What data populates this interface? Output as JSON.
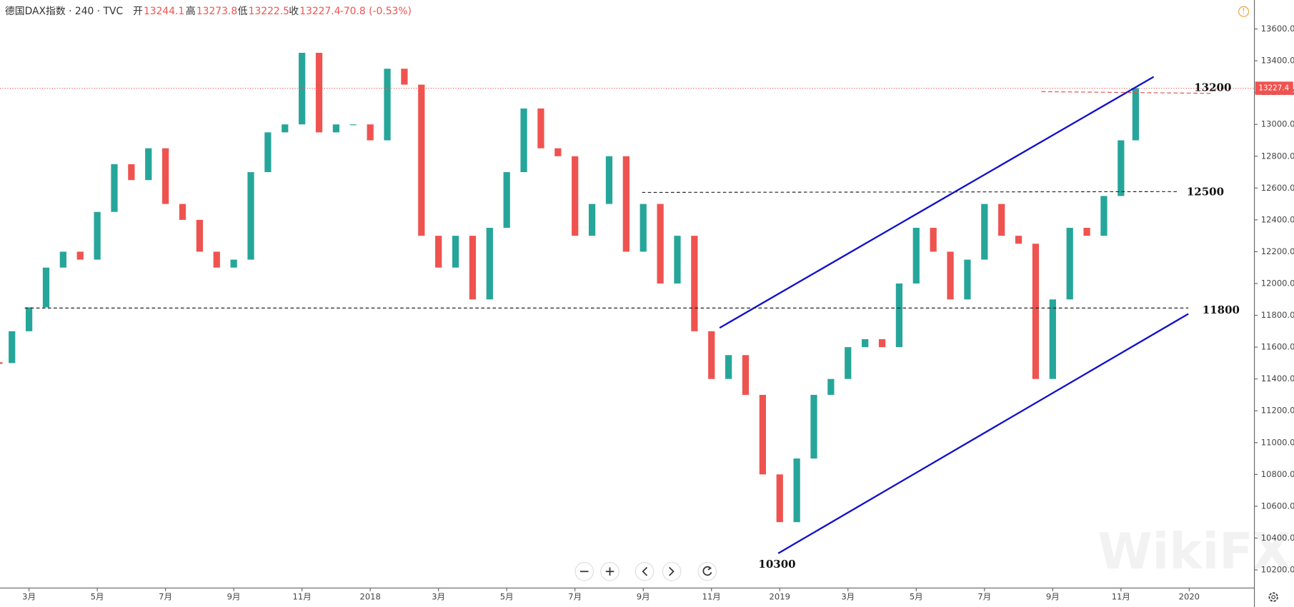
{
  "header": {
    "symbol": "德国DAX指数 · 240 · TVC",
    "open_label": "开",
    "open": 13244.1,
    "high_label": "高",
    "high": 13273.8,
    "low_label": "低",
    "low": 13222.5,
    "close_label": "收",
    "close": 13227.4,
    "change": "-70.8 (-0.53%)"
  },
  "chart_data": {
    "type": "candlestick",
    "x": [
      1.15,
      1.5,
      2,
      2.5,
      3,
      3.5,
      4,
      4.5,
      5,
      5.5,
      6,
      6.5,
      7,
      7.5,
      8,
      8.5,
      9,
      9.5,
      10,
      10.5,
      11,
      11.5,
      12,
      12.5,
      13,
      13.5,
      14,
      14.5,
      15,
      15.5,
      16,
      16.5,
      17,
      17.5,
      18,
      18.5,
      19,
      19.5,
      20,
      20.5,
      21,
      21.5,
      22,
      22.5,
      23,
      23.5,
      24,
      24.5,
      25,
      25.5,
      26,
      26.5,
      27,
      27.5,
      28,
      28.5,
      29,
      29.5,
      30,
      30.5,
      31,
      31.5,
      32,
      32.5,
      33,
      33.5,
      34,
      34.43
    ],
    "values": [
      11500,
      11700,
      11850,
      12100,
      12200,
      12150,
      12450,
      12750,
      12650,
      12850,
      12500,
      12400,
      12200,
      12100,
      12150,
      12700,
      12950,
      13000,
      13450,
      12950,
      13000,
      13000,
      12900,
      13350,
      13250,
      12300,
      12100,
      12300,
      11900,
      12350,
      12700,
      13100,
      12850,
      12800,
      12300,
      12500,
      12800,
      12200,
      12500,
      12000,
      12300,
      11700,
      11400,
      11550,
      11300,
      10800,
      10500,
      10900,
      11300,
      11400,
      11600,
      11650,
      11600,
      12000,
      12350,
      12200,
      11900,
      12150,
      12500,
      12300,
      12250,
      11400,
      11900,
      12350,
      12300,
      12550,
      12900,
      13227.4
    ],
    "up_color": "#26a69a",
    "down_color": "#ef5350",
    "xlim": [
      1.15,
      37.91
    ],
    "xticks": [
      {
        "value": 2,
        "label": "3月"
      },
      {
        "value": 4,
        "label": "5月"
      },
      {
        "value": 6,
        "label": "7月"
      },
      {
        "value": 8,
        "label": "9月"
      },
      {
        "value": 10,
        "label": "11月"
      },
      {
        "value": 12,
        "label": "2018"
      },
      {
        "value": 14,
        "label": "3月"
      },
      {
        "value": 16,
        "label": "5月"
      },
      {
        "value": 18,
        "label": "7月"
      },
      {
        "value": 20,
        "label": "9月"
      },
      {
        "value": 22,
        "label": "11月"
      },
      {
        "value": 24,
        "label": "2019"
      },
      {
        "value": 26,
        "label": "3月"
      },
      {
        "value": 28,
        "label": "5月"
      },
      {
        "value": 30,
        "label": "7月"
      },
      {
        "value": 32,
        "label": "9月"
      },
      {
        "value": 34,
        "label": "11月"
      },
      {
        "value": 36,
        "label": "2020"
      }
    ],
    "ylim": [
      10086,
      13782
    ],
    "yticks": [
      {
        "value": 10200,
        "label": "10200.0"
      },
      {
        "value": 10400,
        "label": "10400.0"
      },
      {
        "value": 10600,
        "label": "10600.0"
      },
      {
        "value": 10800,
        "label": "10800.0"
      },
      {
        "value": 11000,
        "label": "11000.0"
      },
      {
        "value": 11200,
        "label": "11200.0"
      },
      {
        "value": 11400,
        "label": "11400.0"
      },
      {
        "value": 11600,
        "label": "11600.0"
      },
      {
        "value": 11800,
        "label": "11800.0"
      },
      {
        "value": 12000,
        "label": "12000.0"
      },
      {
        "value": 12200,
        "label": "12200.0"
      },
      {
        "value": 12400,
        "label": "12400.0"
      },
      {
        "value": 12600,
        "label": "12600.0"
      },
      {
        "value": 12800,
        "label": "12800.0"
      },
      {
        "value": 13000,
        "label": "13000.0"
      },
      {
        "value": 13200,
        "label": "13200.0"
      },
      {
        "value": 13400,
        "label": "13400.0"
      },
      {
        "value": 13600,
        "label": "13600.0"
      }
    ],
    "annotations": [
      "13200",
      "12500",
      "11800",
      "10300"
    ],
    "watermark": "WikiFX"
  }
}
